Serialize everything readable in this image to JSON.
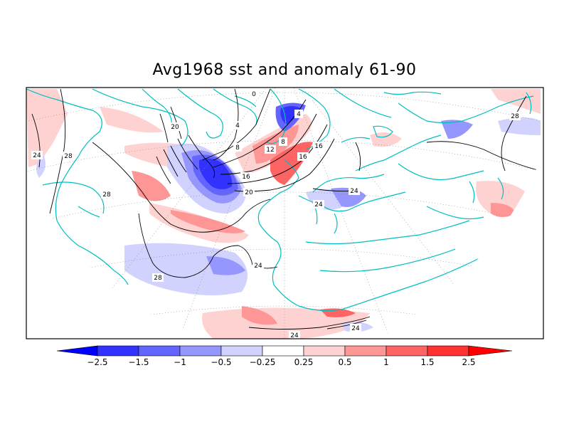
{
  "title": "Avg1968 sst and anomaly 61-90",
  "colorbar": {
    "tick_labels": [
      "-2.5",
      "-1.5",
      "-1",
      "-0.5",
      "-0.25",
      "0.25",
      "0.5",
      "1",
      "1.5",
      "2.5"
    ],
    "colors": [
      "#0000ff",
      "#3232ff",
      "#6464ff",
      "#9696ff",
      "#d2d2ff",
      "#ffffff",
      "#ffd2d2",
      "#ff9696",
      "#ff6464",
      "#ff3232",
      "#ff0000"
    ]
  },
  "contour_labels": [
    "0",
    "4",
    "4",
    "8",
    "8",
    "12",
    "16",
    "16",
    "16",
    "20",
    "20",
    "24",
    "24",
    "24",
    "24",
    "24",
    "24",
    "28",
    "28",
    "28",
    "28"
  ],
  "colors": {
    "coastline": "#00bfbf",
    "contour": "#000000",
    "frame": "#000000"
  }
}
